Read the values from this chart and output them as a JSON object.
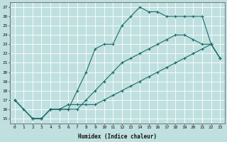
{
  "xlabel": "Humidex (Indice chaleur)",
  "background_color": "#c0e0e0",
  "grid_color": "#ffffff",
  "line_color": "#1a6b6b",
  "xlim": [
    -0.5,
    23.5
  ],
  "ylim": [
    14.5,
    27.5
  ],
  "xticks": [
    0,
    1,
    2,
    3,
    4,
    5,
    6,
    7,
    8,
    9,
    10,
    11,
    12,
    13,
    14,
    15,
    16,
    17,
    18,
    19,
    20,
    21,
    22,
    23
  ],
  "yticks": [
    15,
    16,
    17,
    18,
    19,
    20,
    21,
    22,
    23,
    24,
    25,
    26,
    27
  ],
  "line1_x": [
    0,
    1,
    2,
    3,
    4,
    5,
    6,
    7,
    8,
    9,
    10,
    11,
    12,
    13,
    14,
    15,
    16,
    17,
    18,
    19,
    20,
    21,
    22,
    23
  ],
  "line1_y": [
    17,
    16,
    15,
    15,
    16,
    16,
    16,
    18,
    20,
    22.5,
    23,
    23,
    25,
    26,
    27,
    26.5,
    26.5,
    26,
    26,
    26,
    26,
    26,
    23,
    21.5
  ],
  "line2_x": [
    0,
    2,
    3,
    4,
    5,
    6,
    7,
    8,
    9,
    10,
    11,
    12,
    13,
    14,
    15,
    16,
    17,
    18,
    19,
    20,
    21,
    22,
    23
  ],
  "line2_y": [
    17,
    15,
    15,
    16,
    16,
    16.5,
    16.5,
    16.5,
    16.5,
    17,
    17.5,
    18,
    18.5,
    19,
    19.5,
    20,
    20.5,
    21,
    21.5,
    22,
    22.5,
    23,
    21.5
  ],
  "line3_x": [
    0,
    2,
    3,
    4,
    5,
    6,
    7,
    8,
    9,
    10,
    11,
    12,
    13,
    14,
    15,
    16,
    17,
    18,
    19,
    20,
    21,
    22,
    23
  ],
  "line3_y": [
    17,
    15,
    15,
    16,
    16,
    16,
    16,
    17,
    18,
    19,
    20,
    21,
    21.5,
    22,
    22.5,
    23,
    23.5,
    24,
    24,
    23.5,
    23,
    23,
    21.5
  ]
}
